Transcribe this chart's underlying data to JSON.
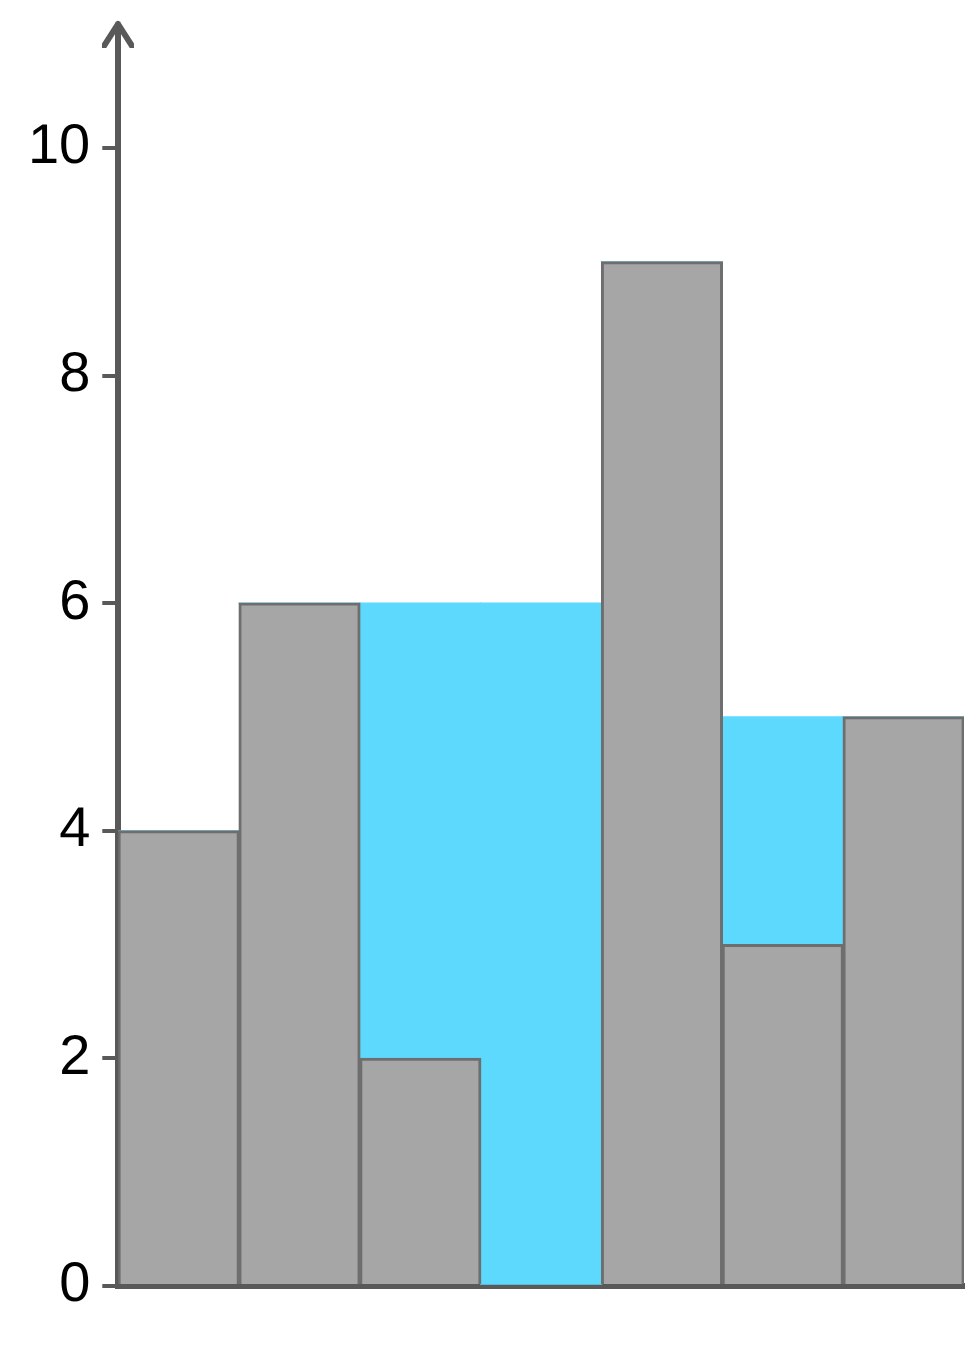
{
  "chart_data": {
    "type": "bar",
    "stacked": true,
    "categories": [
      null,
      null,
      null,
      null,
      null,
      null,
      null
    ],
    "series": [
      {
        "color": "#a6a6a6",
        "values": [
          4,
          6,
          2,
          0,
          9,
          3,
          5
        ]
      },
      {
        "color": "#5dd9fe",
        "values": [
          0,
          0,
          4,
          6,
          0,
          2,
          0
        ]
      }
    ],
    "ylim": [
      0,
      10.9
    ],
    "yticks": [
      0,
      2,
      4,
      6,
      8,
      10
    ],
    "tick_labels": "y",
    "legend": false
  }
}
